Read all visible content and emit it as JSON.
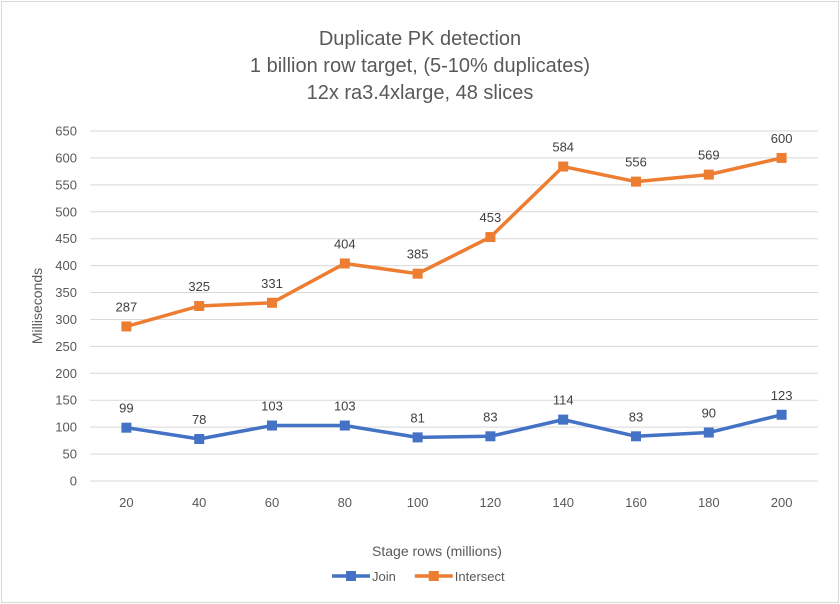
{
  "chart_data": {
    "type": "line",
    "title": [
      "Duplicate PK detection",
      "1 billion row target, (5-10% duplicates)",
      "12x ra3.4xlarge, 48 slices"
    ],
    "xlabel": "Stage rows (millions)",
    "ylabel": "Milliseconds",
    "categories": [
      "20",
      "40",
      "60",
      "80",
      "100",
      "120",
      "140",
      "160",
      "180",
      "200"
    ],
    "ylim": [
      0,
      650
    ],
    "yticks": [
      0,
      50,
      100,
      150,
      200,
      250,
      300,
      350,
      400,
      450,
      500,
      550,
      600,
      650
    ],
    "grid": true,
    "legend_position": "bottom",
    "data_labels": true,
    "series": [
      {
        "name": "Join",
        "color": "#4472c4",
        "marker": "square",
        "values": [
          99,
          78,
          103,
          103,
          81,
          83,
          114,
          83,
          90,
          123
        ]
      },
      {
        "name": "Intersect",
        "color": "#ed7d31",
        "marker": "square",
        "values": [
          287,
          325,
          331,
          404,
          385,
          453,
          584,
          556,
          569,
          600
        ]
      }
    ]
  }
}
